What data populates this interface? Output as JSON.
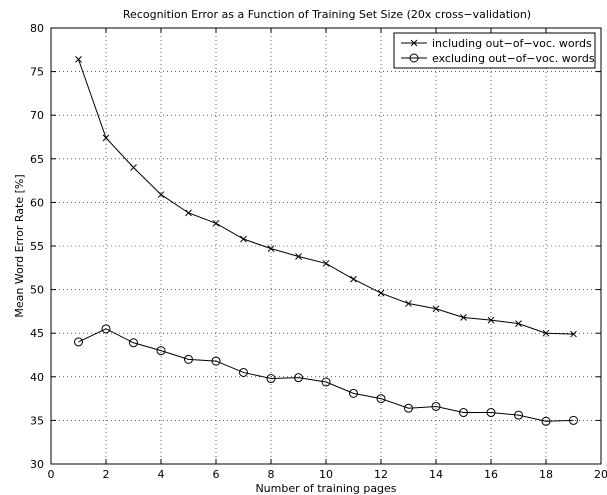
{
  "chart_data": {
    "type": "line",
    "title": "Recognition Error as a Function of Training Set Size (20x cross−validation)",
    "xlabel": "Number of training pages",
    "ylabel": "Mean Word Error Rate [%]",
    "xlim": [
      0,
      20
    ],
    "ylim": [
      30,
      80
    ],
    "xticks": [
      0,
      2,
      4,
      6,
      8,
      10,
      12,
      14,
      16,
      18,
      20
    ],
    "yticks": [
      30,
      35,
      40,
      45,
      50,
      55,
      60,
      65,
      70,
      75,
      80
    ],
    "grid": true,
    "legend_position": "top-right",
    "x": [
      1,
      2,
      3,
      4,
      5,
      6,
      7,
      8,
      9,
      10,
      11,
      12,
      13,
      14,
      15,
      16,
      17,
      18,
      19
    ],
    "series": [
      {
        "name": "including out−of−voc. words",
        "marker": "x",
        "values": [
          76.4,
          67.4,
          64.0,
          60.9,
          58.8,
          57.6,
          55.8,
          54.7,
          53.8,
          53.0,
          51.2,
          49.6,
          48.4,
          47.8,
          46.8,
          46.5,
          46.1,
          45.0,
          44.9
        ]
      },
      {
        "name": "excluding out−of−voc. words",
        "marker": "o",
        "values": [
          44.0,
          45.5,
          43.9,
          43.0,
          42.0,
          41.8,
          40.5,
          39.8,
          39.9,
          39.4,
          38.1,
          37.5,
          36.4,
          36.6,
          35.9,
          35.9,
          35.6,
          34.9,
          35.0
        ]
      }
    ]
  }
}
